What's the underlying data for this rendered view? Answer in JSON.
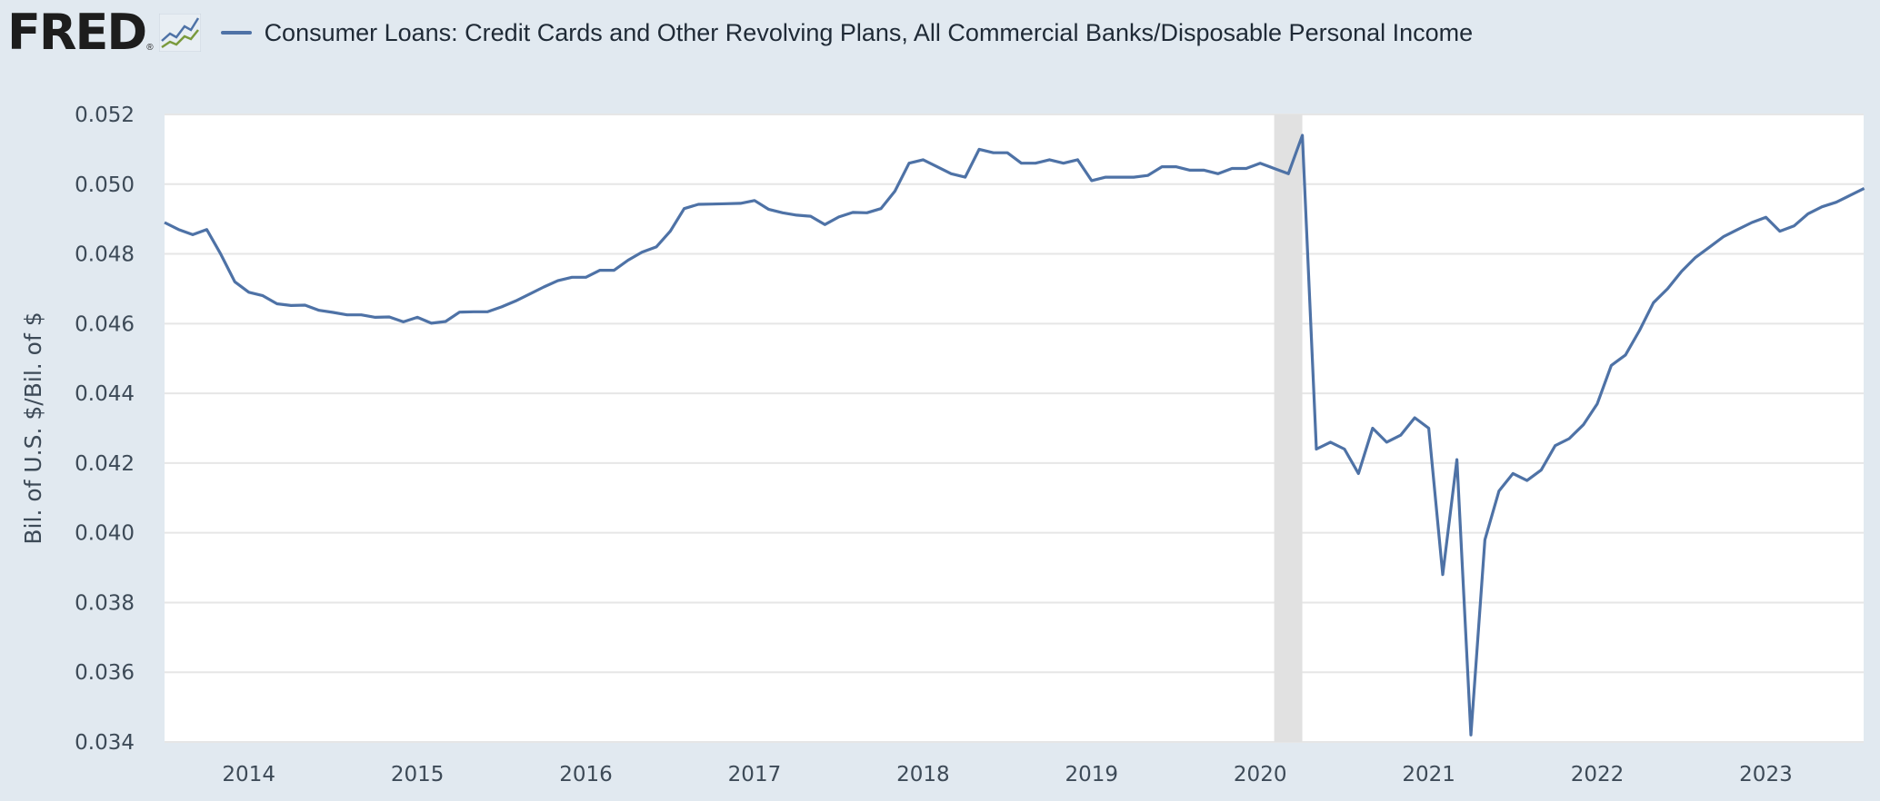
{
  "header": {
    "logo_text": "FRED",
    "logo_reg": "®",
    "legend_label": "Consumer Loans: Credit Cards and Other Revolving Plans, All Commercial Banks/Disposable Personal Income"
  },
  "colors": {
    "series": "#4e72a6",
    "background": "#e1e9f0",
    "plot_bg": "#ffffff",
    "grid": "#e6e6e6",
    "recession": "#e1e1e1"
  },
  "chart_data": {
    "type": "line",
    "title": "Consumer Loans: Credit Cards and Other Revolving Plans, All Commercial Banks/Disposable Personal Income",
    "xlabel": "",
    "ylabel": "Bil. of U.S. $/Bil. of $",
    "xlim": [
      2013.5,
      2023.58
    ],
    "ylim": [
      0.034,
      0.052
    ],
    "grid": true,
    "y_ticks": [
      "0.034",
      "0.036",
      "0.038",
      "0.040",
      "0.042",
      "0.044",
      "0.046",
      "0.048",
      "0.050",
      "0.052"
    ],
    "x_ticks": [
      "2014",
      "2015",
      "2016",
      "2017",
      "2018",
      "2019",
      "2020",
      "2021",
      "2022",
      "2023"
    ],
    "recession": {
      "start": 2020.083,
      "end": 2020.25
    },
    "series": [
      {
        "name": "Consumer Loans: Credit Cards and Other Revolving Plans, All Commercial Banks/Disposable Personal Income",
        "x": [
          2013.5,
          2013.583,
          2013.667,
          2013.75,
          2013.833,
          2013.917,
          2014.0,
          2014.083,
          2014.167,
          2014.25,
          2014.333,
          2014.417,
          2014.5,
          2014.583,
          2014.667,
          2014.75,
          2014.833,
          2014.917,
          2015.0,
          2015.083,
          2015.167,
          2015.25,
          2015.333,
          2015.417,
          2015.5,
          2015.583,
          2015.667,
          2015.75,
          2015.833,
          2015.917,
          2016.0,
          2016.083,
          2016.167,
          2016.25,
          2016.333,
          2016.417,
          2016.5,
          2016.583,
          2016.667,
          2016.75,
          2016.833,
          2016.917,
          2017.0,
          2017.083,
          2017.167,
          2017.25,
          2017.333,
          2017.417,
          2017.5,
          2017.583,
          2017.667,
          2017.75,
          2017.833,
          2017.917,
          2018.0,
          2018.083,
          2018.167,
          2018.25,
          2018.333,
          2018.417,
          2018.5,
          2018.583,
          2018.667,
          2018.75,
          2018.833,
          2018.917,
          2019.0,
          2019.083,
          2019.167,
          2019.25,
          2019.333,
          2019.417,
          2019.5,
          2019.583,
          2019.667,
          2019.75,
          2019.833,
          2019.917,
          2020.0,
          2020.083,
          2020.167,
          2020.25,
          2020.333,
          2020.417,
          2020.5,
          2020.583,
          2020.667,
          2020.75,
          2020.833,
          2020.917,
          2021.0,
          2021.083,
          2021.167,
          2021.25,
          2021.333,
          2021.417,
          2021.5,
          2021.583,
          2021.667,
          2021.75,
          2021.833,
          2021.917,
          2022.0,
          2022.083,
          2022.167,
          2022.25,
          2022.333,
          2022.417,
          2022.5,
          2022.583,
          2022.667,
          2022.75,
          2022.833,
          2022.917,
          2023.0,
          2023.083,
          2023.167,
          2023.25,
          2023.333,
          2023.417,
          2023.5,
          2023.583
        ],
        "values": [
          0.0489,
          0.0487,
          0.04855,
          0.0487,
          0.048,
          0.0472,
          0.0469,
          0.0468,
          0.04657,
          0.04652,
          0.04653,
          0.04638,
          0.04632,
          0.04625,
          0.04625,
          0.04618,
          0.04619,
          0.04605,
          0.04618,
          0.04601,
          0.04606,
          0.04633,
          0.04634,
          0.04634,
          0.04648,
          0.04665,
          0.04685,
          0.04705,
          0.04723,
          0.04733,
          0.04733,
          0.04753,
          0.04753,
          0.04782,
          0.04805,
          0.0482,
          0.04865,
          0.0493,
          0.04942,
          0.04943,
          0.04944,
          0.04945,
          0.04953,
          0.04928,
          0.04918,
          0.04911,
          0.04908,
          0.04884,
          0.04906,
          0.04919,
          0.04918,
          0.0493,
          0.0498,
          0.0506,
          0.0507,
          0.0505,
          0.0503,
          0.0502,
          0.051,
          0.0509,
          0.0509,
          0.0506,
          0.0506,
          0.0507,
          0.0506,
          0.0507,
          0.0501,
          0.0502,
          0.0502,
          0.0502,
          0.05025,
          0.0505,
          0.0505,
          0.0504,
          0.0504,
          0.0503,
          0.05045,
          0.05045,
          0.0506,
          0.05045,
          0.0503,
          0.0514,
          0.0424,
          0.0426,
          0.0424,
          0.0417,
          0.043,
          0.0426,
          0.0428,
          0.0433,
          0.043,
          0.0388,
          0.0421,
          0.0342,
          0.0398,
          0.0412,
          0.0417,
          0.0415,
          0.0418,
          0.0425,
          0.0427,
          0.0431,
          0.0437,
          0.0448,
          0.0451,
          0.0458,
          0.0466,
          0.047,
          0.0475,
          0.0479,
          0.0482,
          0.0485,
          0.0487,
          0.0489,
          0.04905,
          0.04865,
          0.0488,
          0.04915,
          0.04935,
          0.04948,
          0.04968,
          0.04988
        ]
      }
    ]
  }
}
